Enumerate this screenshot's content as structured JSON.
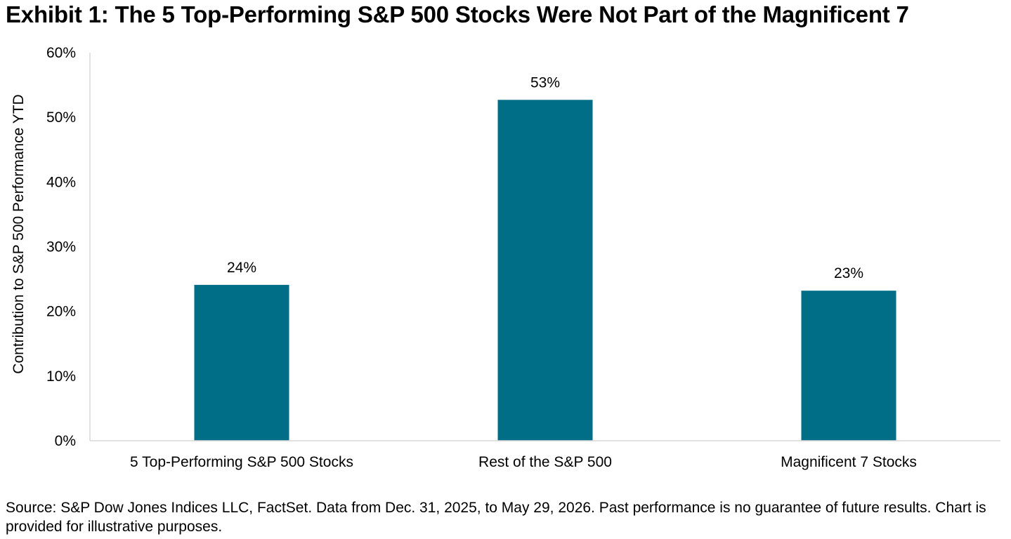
{
  "title": "Exhibit 1: The 5 Top-Performing S&P 500 Stocks Were Not Part of the Magnificent 7",
  "source": "Source: S&P Dow Jones Indices LLC, FactSet. Data from Dec. 31, 2025, to May 29, 2026. Past performance is no guarantee of future results. Chart is provided for illustrative purposes.",
  "chart_data": {
    "type": "bar",
    "title": "Exhibit 1: The 5 Top-Performing S&P 500 Stocks Were Not Part of the Magnificent 7",
    "categories": [
      "5 Top-Performing S&P 500 Stocks",
      "Rest of the S&P 500",
      "Magnificent 7 Stocks"
    ],
    "values": [
      24.1,
      52.7,
      23.2
    ],
    "data_labels": [
      "24%",
      "53%",
      "23%"
    ],
    "xlabel": "",
    "ylabel": "Contribution to S&P 500 Performance YTD",
    "ylim": [
      0,
      60
    ],
    "yticks": [
      0,
      10,
      20,
      30,
      40,
      50,
      60
    ],
    "ytick_labels": [
      "0%",
      "10%",
      "20%",
      "30%",
      "40%",
      "50%",
      "60%"
    ],
    "bar_color": "#006e87",
    "grid": false,
    "legend": "none"
  }
}
